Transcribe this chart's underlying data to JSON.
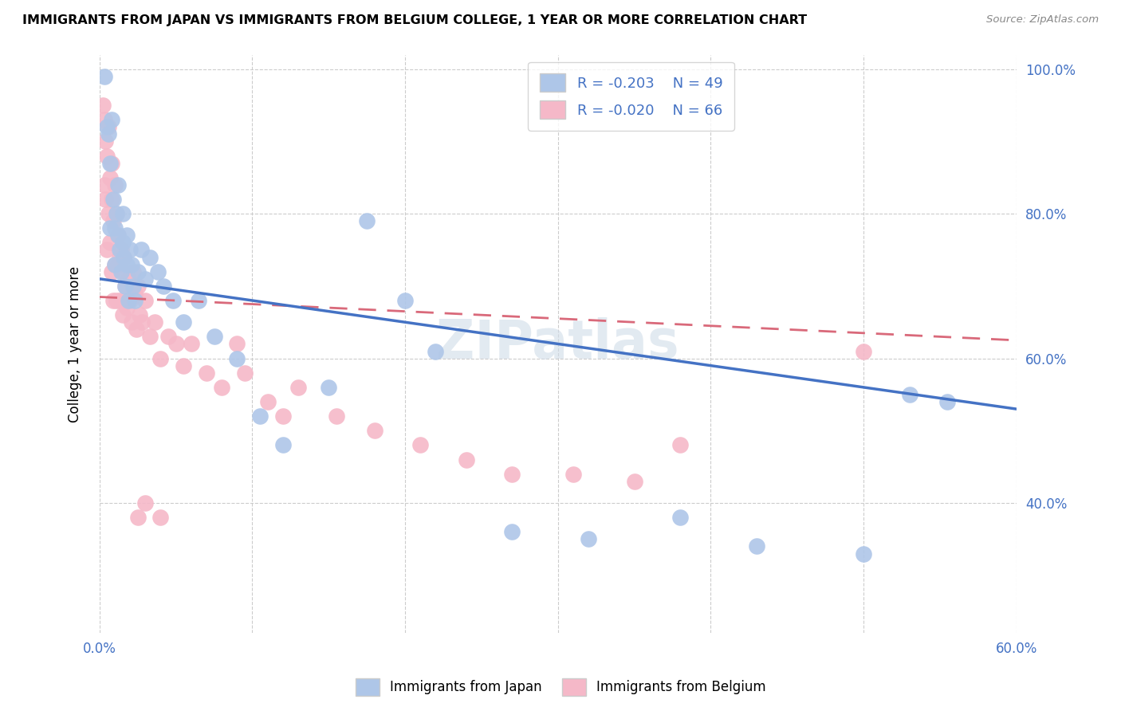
{
  "title": "IMMIGRANTS FROM JAPAN VS IMMIGRANTS FROM BELGIUM COLLEGE, 1 YEAR OR MORE CORRELATION CHART",
  "source": "Source: ZipAtlas.com",
  "ylabel": "College, 1 year or more",
  "xlim": [
    0.0,
    0.6
  ],
  "ylim": [
    0.22,
    1.02
  ],
  "xtick_positions": [
    0.0,
    0.1,
    0.2,
    0.3,
    0.4,
    0.5,
    0.6
  ],
  "xtick_labels": [
    "0.0%",
    "",
    "",
    "",
    "",
    "",
    "60.0%"
  ],
  "ytick_positions": [
    0.4,
    0.6,
    0.8,
    1.0
  ],
  "ytick_labels": [
    "40.0%",
    "60.0%",
    "80.0%",
    "100.0%"
  ],
  "legend_blue_r": "-0.203",
  "legend_blue_n": "49",
  "legend_pink_r": "-0.020",
  "legend_pink_n": "66",
  "blue_color": "#aec6e8",
  "pink_color": "#f5b8c8",
  "trendline_blue_color": "#4472c4",
  "trendline_pink_color": "#d9697a",
  "grid_color": "#cccccc",
  "watermark": "ZIPatlas",
  "japan_x": [
    0.003,
    0.005,
    0.006,
    0.007,
    0.007,
    0.008,
    0.009,
    0.01,
    0.01,
    0.011,
    0.012,
    0.012,
    0.013,
    0.014,
    0.015,
    0.015,
    0.016,
    0.017,
    0.018,
    0.018,
    0.019,
    0.02,
    0.021,
    0.022,
    0.023,
    0.025,
    0.027,
    0.03,
    0.033,
    0.038,
    0.042,
    0.048,
    0.055,
    0.065,
    0.075,
    0.09,
    0.105,
    0.12,
    0.15,
    0.175,
    0.22,
    0.27,
    0.32,
    0.38,
    0.43,
    0.5,
    0.53,
    0.555,
    0.2
  ],
  "japan_y": [
    0.99,
    0.92,
    0.91,
    0.87,
    0.78,
    0.93,
    0.82,
    0.78,
    0.73,
    0.8,
    0.77,
    0.84,
    0.75,
    0.72,
    0.76,
    0.8,
    0.74,
    0.7,
    0.77,
    0.73,
    0.68,
    0.75,
    0.73,
    0.7,
    0.68,
    0.72,
    0.75,
    0.71,
    0.74,
    0.72,
    0.7,
    0.68,
    0.65,
    0.68,
    0.63,
    0.6,
    0.52,
    0.48,
    0.56,
    0.79,
    0.61,
    0.36,
    0.35,
    0.38,
    0.34,
    0.33,
    0.55,
    0.54,
    0.68
  ],
  "belgium_x": [
    0.002,
    0.003,
    0.003,
    0.004,
    0.004,
    0.005,
    0.005,
    0.006,
    0.006,
    0.007,
    0.007,
    0.008,
    0.008,
    0.008,
    0.009,
    0.009,
    0.01,
    0.01,
    0.011,
    0.011,
    0.012,
    0.012,
    0.013,
    0.013,
    0.014,
    0.015,
    0.015,
    0.016,
    0.017,
    0.018,
    0.019,
    0.02,
    0.021,
    0.022,
    0.023,
    0.024,
    0.025,
    0.026,
    0.028,
    0.03,
    0.033,
    0.036,
    0.04,
    0.045,
    0.05,
    0.055,
    0.06,
    0.07,
    0.08,
    0.095,
    0.11,
    0.13,
    0.155,
    0.18,
    0.21,
    0.24,
    0.27,
    0.31,
    0.35,
    0.38,
    0.12,
    0.09,
    0.04,
    0.03,
    0.025,
    0.5
  ],
  "belgium_y": [
    0.95,
    0.93,
    0.84,
    0.9,
    0.82,
    0.88,
    0.75,
    0.92,
    0.8,
    0.85,
    0.76,
    0.82,
    0.72,
    0.87,
    0.79,
    0.68,
    0.84,
    0.73,
    0.8,
    0.68,
    0.77,
    0.73,
    0.74,
    0.68,
    0.75,
    0.72,
    0.66,
    0.74,
    0.7,
    0.67,
    0.71,
    0.68,
    0.65,
    0.72,
    0.69,
    0.64,
    0.7,
    0.66,
    0.65,
    0.68,
    0.63,
    0.65,
    0.6,
    0.63,
    0.62,
    0.59,
    0.62,
    0.58,
    0.56,
    0.58,
    0.54,
    0.56,
    0.52,
    0.5,
    0.48,
    0.46,
    0.44,
    0.44,
    0.43,
    0.48,
    0.52,
    0.62,
    0.38,
    0.4,
    0.38,
    0.61
  ],
  "trendline_blue_x0": 0.0,
  "trendline_blue_y0": 0.71,
  "trendline_blue_x1": 0.6,
  "trendline_blue_y1": 0.53,
  "trendline_pink_x0": 0.0,
  "trendline_pink_y0": 0.685,
  "trendline_pink_x1": 0.6,
  "trendline_pink_y1": 0.625
}
